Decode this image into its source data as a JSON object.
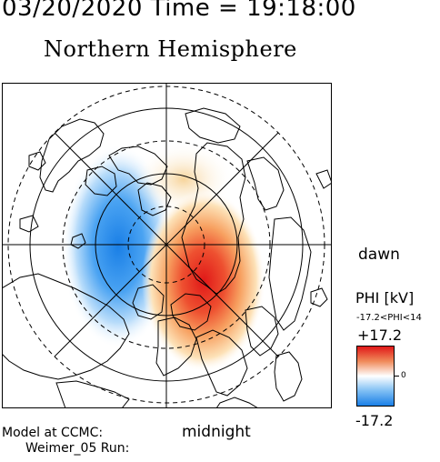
{
  "header": {
    "timestamp": "03/20/2020 Time = 19:18:00"
  },
  "map": {
    "title": "Northern Hemisphere",
    "dawn_label": "dawn",
    "midnight_label": "midnight",
    "projection": "polar stereographic, north pole centered"
  },
  "colorbar": {
    "title": "PHI [kV]",
    "range_text": "-17.2<PHI<14",
    "max_label": "+17.2",
    "min_label": "-17.2",
    "zero_label": "0",
    "max_value": 17.2,
    "min_value": -17.2,
    "colors": {
      "high": "#e01818",
      "mid": "#ffffff",
      "low": "#1a7fe6"
    }
  },
  "footer": {
    "model_label": "Model at CCMC:",
    "run_label": "Weimer_05 Run:"
  }
}
